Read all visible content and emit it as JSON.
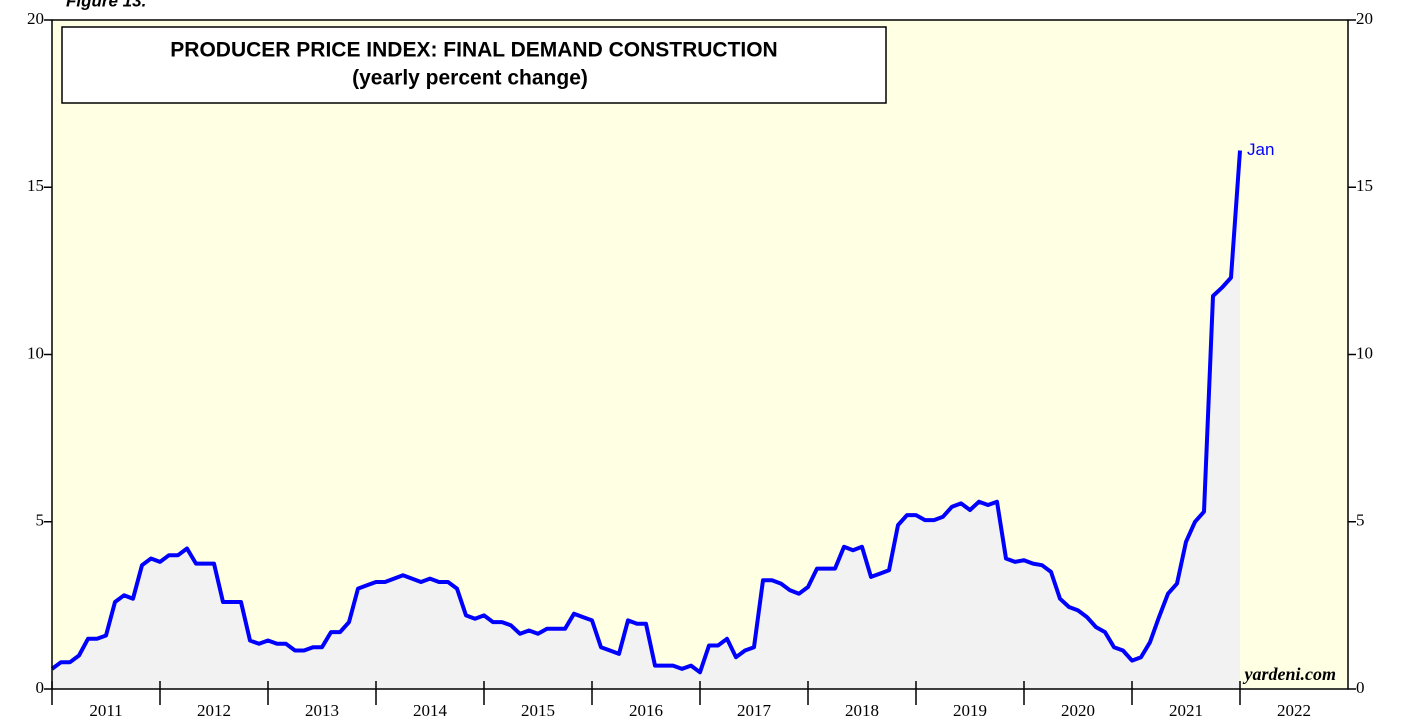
{
  "figure": "Figure 13.",
  "chart_data": {
    "type": "line",
    "title": "PRODUCER PRICE INDEX: FINAL DEMAND CONSTRUCTION",
    "subtitle": "(yearly percent change)",
    "source": "yardeni.com",
    "end_label": "Jan",
    "x": [
      "2011-01",
      "2011-02",
      "2011-03",
      "2011-04",
      "2011-05",
      "2011-06",
      "2011-07",
      "2011-08",
      "2011-09",
      "2011-10",
      "2011-11",
      "2011-12",
      "2012-01",
      "2012-02",
      "2012-03",
      "2012-04",
      "2012-05",
      "2012-06",
      "2012-07",
      "2012-08",
      "2012-09",
      "2012-10",
      "2012-11",
      "2012-12",
      "2013-01",
      "2013-02",
      "2013-03",
      "2013-04",
      "2013-05",
      "2013-06",
      "2013-07",
      "2013-08",
      "2013-09",
      "2013-10",
      "2013-11",
      "2013-12",
      "2014-01",
      "2014-02",
      "2014-03",
      "2014-04",
      "2014-05",
      "2014-06",
      "2014-07",
      "2014-08",
      "2014-09",
      "2014-10",
      "2014-11",
      "2014-12",
      "2015-01",
      "2015-02",
      "2015-03",
      "2015-04",
      "2015-05",
      "2015-06",
      "2015-07",
      "2015-08",
      "2015-09",
      "2015-10",
      "2015-11",
      "2015-12",
      "2016-01",
      "2016-02",
      "2016-03",
      "2016-04",
      "2016-05",
      "2016-06",
      "2016-07",
      "2016-08",
      "2016-09",
      "2016-10",
      "2016-11",
      "2016-12",
      "2017-01",
      "2017-02",
      "2017-03",
      "2017-04",
      "2017-05",
      "2017-06",
      "2017-07",
      "2017-08",
      "2017-09",
      "2017-10",
      "2017-11",
      "2017-12",
      "2018-01",
      "2018-02",
      "2018-03",
      "2018-04",
      "2018-05",
      "2018-06",
      "2018-07",
      "2018-08",
      "2018-09",
      "2018-10",
      "2018-11",
      "2018-12",
      "2019-01",
      "2019-02",
      "2019-03",
      "2019-04",
      "2019-05",
      "2019-06",
      "2019-07",
      "2019-08",
      "2019-09",
      "2019-10",
      "2019-11",
      "2019-12",
      "2020-01",
      "2020-02",
      "2020-03",
      "2020-04",
      "2020-05",
      "2020-06",
      "2020-07",
      "2020-08",
      "2020-09",
      "2020-10",
      "2020-11",
      "2020-12",
      "2021-01",
      "2021-02",
      "2021-03",
      "2021-04",
      "2021-05",
      "2021-06",
      "2021-07",
      "2021-08",
      "2021-09",
      "2021-10",
      "2021-11",
      "2021-12",
      "2022-01"
    ],
    "series": [
      {
        "name": "PPI final demand construction",
        "color": "#0000ff",
        "fill": "#f2f2f2",
        "values": [
          0.6,
          0.8,
          0.8,
          1.0,
          1.5,
          1.5,
          1.6,
          2.6,
          2.8,
          2.7,
          3.7,
          3.9,
          3.8,
          4.0,
          4.0,
          4.2,
          3.75,
          3.75,
          3.75,
          2.6,
          2.6,
          2.6,
          1.45,
          1.35,
          1.45,
          1.35,
          1.35,
          1.15,
          1.15,
          1.25,
          1.25,
          1.7,
          1.7,
          2.0,
          3.0,
          3.1,
          3.2,
          3.2,
          3.3,
          3.4,
          3.3,
          3.2,
          3.3,
          3.2,
          3.2,
          3.0,
          2.2,
          2.1,
          2.2,
          2.0,
          2.0,
          1.9,
          1.65,
          1.75,
          1.65,
          1.8,
          1.8,
          1.8,
          2.25,
          2.15,
          2.05,
          1.25,
          1.15,
          1.05,
          2.05,
          1.95,
          1.95,
          0.7,
          0.7,
          0.7,
          0.6,
          0.7,
          0.5,
          1.3,
          1.3,
          1.5,
          0.95,
          1.15,
          1.25,
          3.25,
          3.25,
          3.15,
          2.95,
          2.85,
          3.05,
          3.6,
          3.6,
          3.6,
          4.25,
          4.15,
          4.25,
          3.35,
          3.45,
          3.55,
          4.9,
          5.2,
          5.2,
          5.05,
          5.05,
          5.15,
          5.45,
          5.55,
          5.35,
          5.6,
          5.5,
          5.6,
          3.9,
          3.8,
          3.85,
          3.75,
          3.7,
          3.5,
          2.7,
          2.45,
          2.35,
          2.15,
          1.85,
          1.7,
          1.25,
          1.15,
          0.85,
          0.95,
          1.4,
          2.15,
          2.85,
          3.15,
          4.4,
          5.0,
          5.3,
          11.75,
          12.0,
          12.3,
          16.1
        ]
      }
    ],
    "xlim": [
      "2011-01",
      "2023-01"
    ],
    "xticks": [
      "2011",
      "2012",
      "2013",
      "2014",
      "2015",
      "2016",
      "2017",
      "2018",
      "2019",
      "2020",
      "2021",
      "2022"
    ],
    "ylim": [
      0,
      20
    ],
    "yticks": [
      0,
      5,
      10,
      15,
      20
    ],
    "background": "#ffffe4"
  }
}
